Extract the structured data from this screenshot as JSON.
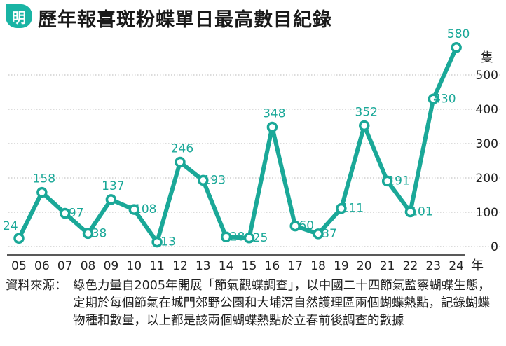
{
  "header": {
    "badge_text": "明",
    "title": "歷年報喜斑粉蝶單日最高數目紀錄"
  },
  "chart_data": {
    "type": "line",
    "title": "歷年報喜斑粉蝶單日最高數目紀錄",
    "categories": [
      "05",
      "06",
      "07",
      "08",
      "09",
      "10",
      "11",
      "12",
      "13",
      "14",
      "15",
      "16",
      "17",
      "18",
      "19",
      "20",
      "21",
      "22",
      "23",
      "24"
    ],
    "values": [
      24,
      158,
      97,
      38,
      137,
      108,
      13,
      246,
      193,
      28,
      25,
      348,
      60,
      37,
      111,
      352,
      191,
      101,
      430,
      580
    ],
    "x_unit": "年",
    "y_unit": "隻",
    "y_ticks": [
      0,
      100,
      200,
      300,
      400,
      500
    ],
    "ylim": [
      0,
      600
    ],
    "grid": true,
    "y_axis_side": "right",
    "line_color": "#1aa898",
    "label_color": "#1aa898"
  },
  "footer": {
    "source_label": "資料來源：",
    "source_text": "綠色力量自2005年開展「節氣觀蝶調查」，以中國二十四節氣監察蝴蝶生態，定期於每個節氣在城門郊野公園和大埔滘自然護理區兩個蝴蝶熱點，記錄蝴蝶物種和數量，以上都是該兩個蝴蝶熱點於立春前後調查的數據"
  }
}
